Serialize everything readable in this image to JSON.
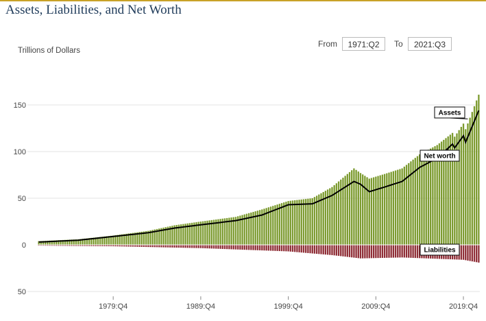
{
  "header": {
    "title": "Assets, Liabilities, and Net Worth",
    "unit_label": "Trillions of Dollars",
    "from_label": "From",
    "from_value": "1971:Q2",
    "to_label": "To",
    "to_value": "2021:Q3"
  },
  "colors": {
    "assets": "#7b9a2e",
    "liabilities": "#8e2c35",
    "net_worth": "#000000",
    "gridline": "#e3e3e3",
    "title": "#1f3b5a",
    "accent_rule": "#c9a227"
  },
  "chart_data": {
    "type": "bar",
    "x_range": [
      "1971:Q2",
      "2021:Q3"
    ],
    "x_ticks": [
      "1979:Q4",
      "1989:Q4",
      "1999:Q4",
      "2009:Q4",
      "2019:Q4"
    ],
    "y_ticks": [
      {
        "value": 150,
        "label": "150"
      },
      {
        "value": 100,
        "label": "100"
      },
      {
        "value": 50,
        "label": "50"
      },
      {
        "value": 0,
        "label": "0"
      },
      {
        "value": -50,
        "label": "50"
      }
    ],
    "ylim": [
      -55,
      165
    ],
    "grid": true,
    "annotations": [
      "Assets",
      "Net worth",
      "Liabilities"
    ],
    "series": [
      {
        "name": "Assets",
        "type": "bar",
        "keypoints": [
          [
            "1971:Q2",
            4.0
          ],
          [
            "1975:Q4",
            6.0
          ],
          [
            "1979:Q4",
            10.0
          ],
          [
            "1983:Q4",
            15.0
          ],
          [
            "1986:Q4",
            21.0
          ],
          [
            "1989:Q4",
            25.0
          ],
          [
            "1993:Q4",
            30.0
          ],
          [
            "1996:Q4",
            38.0
          ],
          [
            "1999:Q4",
            47.0
          ],
          [
            "2002:Q3",
            50.0
          ],
          [
            "2004:Q4",
            62.0
          ],
          [
            "2007:Q2",
            82.0
          ],
          [
            "2008:Q1",
            77.0
          ],
          [
            "2009:Q1",
            71.0
          ],
          [
            "2010:Q4",
            76.0
          ],
          [
            "2012:Q4",
            82.0
          ],
          [
            "2014:Q4",
            97.0
          ],
          [
            "2016:Q4",
            107.0
          ],
          [
            "2018:Q3",
            120.0
          ],
          [
            "2018:Q4",
            116.0
          ],
          [
            "2019:Q4",
            130.0
          ],
          [
            "2020:Q1",
            124.0
          ],
          [
            "2021:Q3",
            161.0
          ]
        ]
      },
      {
        "name": "Liabilities",
        "type": "bar",
        "keypoints": [
          [
            "1971:Q2",
            -0.8
          ],
          [
            "1979:Q4",
            -1.5
          ],
          [
            "1989:Q4",
            -3.5
          ],
          [
            "1999:Q4",
            -7.0
          ],
          [
            "2004:Q4",
            -11.0
          ],
          [
            "2008:Q1",
            -14.5
          ],
          [
            "2012:Q4",
            -13.5
          ],
          [
            "2019:Q4",
            -16.0
          ],
          [
            "2021:Q3",
            -19.0
          ]
        ]
      },
      {
        "name": "Net worth",
        "type": "line",
        "keypoints": [
          [
            "1971:Q2",
            3.0
          ],
          [
            "1975:Q4",
            5.0
          ],
          [
            "1979:Q4",
            9.0
          ],
          [
            "1983:Q4",
            13.0
          ],
          [
            "1986:Q4",
            18.0
          ],
          [
            "1989:Q4",
            21.5
          ],
          [
            "1993:Q4",
            26.0
          ],
          [
            "1996:Q4",
            32.0
          ],
          [
            "1999:Q4",
            43.0
          ],
          [
            "2002:Q3",
            44.0
          ],
          [
            "2004:Q4",
            53.0
          ],
          [
            "2007:Q2",
            68.0
          ],
          [
            "2008:Q1",
            65.0
          ],
          [
            "2009:Q1",
            57.0
          ],
          [
            "2010:Q4",
            62.0
          ],
          [
            "2012:Q4",
            68.0
          ],
          [
            "2014:Q4",
            83.0
          ],
          [
            "2016:Q4",
            93.0
          ],
          [
            "2018:Q3",
            108.0
          ],
          [
            "2018:Q4",
            104.0
          ],
          [
            "2019:Q4",
            117.0
          ],
          [
            "2020:Q1",
            110.0
          ],
          [
            "2021:Q3",
            144.0
          ]
        ]
      }
    ]
  }
}
